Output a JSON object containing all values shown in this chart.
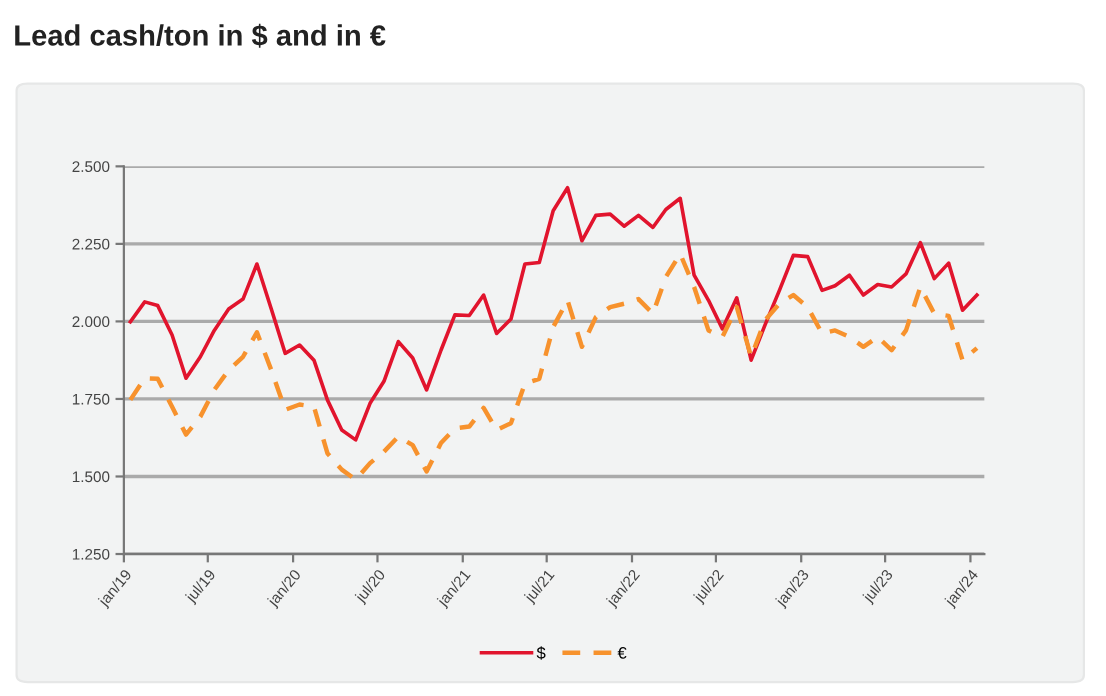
{
  "chart_data": {
    "type": "line",
    "title": "Lead cash/ton in $ and in €",
    "x": [
      "2019-01-15",
      "2019-02-15",
      "2019-03-15",
      "2019-04-15",
      "2019-05-15",
      "2019-06-15",
      "2019-07-15",
      "2019-08-15",
      "2019-09-15",
      "2019-10-15",
      "2019-11-15",
      "2019-12-15",
      "2020-01-15",
      "2020-02-15",
      "2020-03-15",
      "2020-04-15",
      "2020-05-15",
      "2020-06-15",
      "2020-07-15",
      "2020-08-15",
      "2020-09-15",
      "2020-10-15",
      "2020-11-15",
      "2020-12-15",
      "2021-01-15",
      "2021-02-15",
      "2021-03-15",
      "2021-04-15",
      "2021-05-15",
      "2021-06-15",
      "2021-07-15",
      "2021-08-15",
      "2021-09-15",
      "2021-10-15",
      "2021-11-15",
      "2021-12-15",
      "2022-01-15",
      "2022-02-15",
      "2022-03-15",
      "2022-04-15",
      "2022-05-15",
      "2022-06-15",
      "2022-07-15",
      "2022-08-15",
      "2022-09-15",
      "2022-10-15",
      "2022-11-15",
      "2022-12-15",
      "2023-01-15",
      "2023-02-15",
      "2023-03-15",
      "2023-04-15",
      "2023-05-15",
      "2023-06-15",
      "2023-07-15",
      "2023-08-15",
      "2023-09-15",
      "2023-10-15",
      "2023-11-15",
      "2023-12-15",
      "2024-01-15"
    ],
    "series": [
      {
        "name": "$",
        "color": "#e1142d",
        "line_style": "solid",
        "values": [
          1999,
          2063,
          2051,
          1956,
          1817,
          1886,
          1971,
          2040,
          2072,
          2185,
          2040,
          1897,
          1924,
          1875,
          1747,
          1650,
          1618,
          1736,
          1807,
          1935,
          1882,
          1779,
          1907,
          2021,
          2019,
          2085,
          1961,
          2008,
          2185,
          2190,
          2357,
          2431,
          2260,
          2342,
          2346,
          2307,
          2342,
          2303,
          2361,
          2397,
          2149,
          2068,
          1976,
          2076,
          1875,
          1989,
          2100,
          2213,
          2209,
          2100,
          2115,
          2149,
          2085,
          2119,
          2111,
          2153,
          2254,
          2138,
          2188,
          2036,
          2085
        ]
      },
      {
        "name": "€",
        "color": "#f7922d",
        "line_style": "dashed",
        "values": [
          1747,
          1817,
          1815,
          1725,
          1635,
          1693,
          1779,
          1843,
          1886,
          1965,
          1843,
          1715,
          1732,
          1725,
          1575,
          1522,
          1490,
          1543,
          1580,
          1629,
          1601,
          1516,
          1608,
          1655,
          1661,
          1721,
          1650,
          1672,
          1800,
          1815,
          1982,
          2068,
          1918,
          2014,
          2046,
          2057,
          2072,
          2025,
          2143,
          2218,
          2111,
          1971,
          1950,
          2046,
          1886,
          2004,
          2057,
          2085,
          2046,
          1961,
          1971,
          1950,
          1918,
          1950,
          1907,
          1971,
          2111,
          2025,
          2018,
          1875,
          1914
        ]
      }
    ],
    "xlim": [
      "2019-01-01",
      "2024-01-31"
    ],
    "xticks": [
      {
        "value": "2019-01-01",
        "label": "jan/19"
      },
      {
        "value": "2019-07-01",
        "label": "jul/19"
      },
      {
        "value": "2020-01-01",
        "label": "jan/20"
      },
      {
        "value": "2020-07-01",
        "label": "jul/20"
      },
      {
        "value": "2021-01-01",
        "label": "jan/21"
      },
      {
        "value": "2021-07-01",
        "label": "jul/21"
      },
      {
        "value": "2022-01-01",
        "label": "jan/22"
      },
      {
        "value": "2022-07-01",
        "label": "jul/22"
      },
      {
        "value": "2023-01-01",
        "label": "jan/23"
      },
      {
        "value": "2023-07-01",
        "label": "jul/23"
      },
      {
        "value": "2024-01-01",
        "label": "jan/24"
      }
    ],
    "ylim": [
      1250,
      2500
    ],
    "yticks": [
      {
        "value": 1250,
        "label": "1.250"
      },
      {
        "value": 1500,
        "label": "1.500"
      },
      {
        "value": 1750,
        "label": "1.750"
      },
      {
        "value": 2000,
        "label": "2.000"
      },
      {
        "value": 2250,
        "label": "2.250"
      },
      {
        "value": 2500,
        "label": "2.500"
      }
    ],
    "grid": "y",
    "legend": "bottom",
    "marker": "none"
  }
}
